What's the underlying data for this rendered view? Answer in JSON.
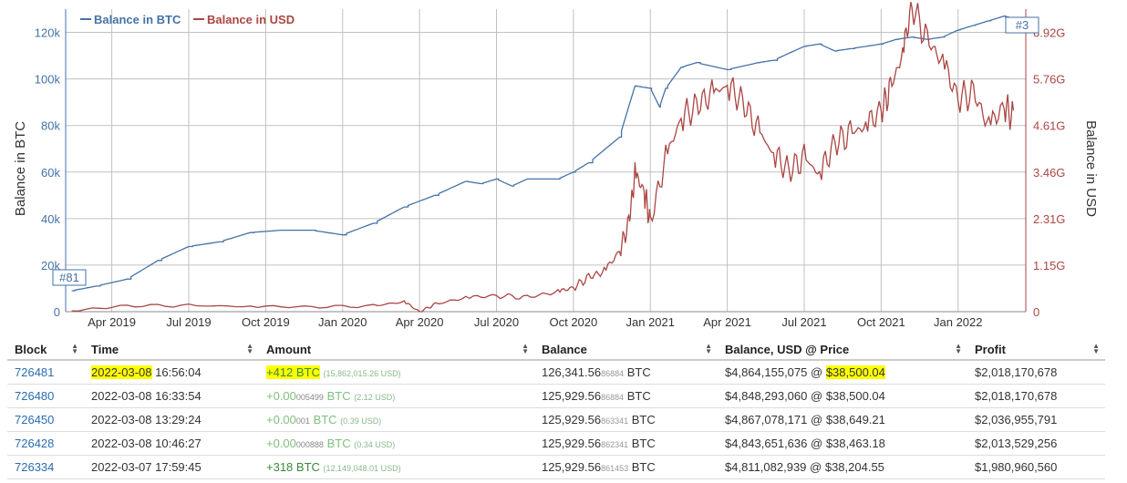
{
  "colors": {
    "btc": "#4572a7",
    "usd": "#aa4643",
    "grid": "#c0c0c0",
    "link": "#2a6cb0",
    "highlight": "#ffff00",
    "positive": "#3a8a3a"
  },
  "chart_data": {
    "type": "line",
    "title": "",
    "legend": [
      "Balance in BTC",
      "Balance in USD"
    ],
    "ylabel_left": "Balance in BTC",
    "ylabel_right": "Balance in USD",
    "ylim_left": [
      0,
      130000
    ],
    "ylim_right": [
      0,
      7.5
    ],
    "yticks_left": [
      "0",
      "20k",
      "40k",
      "60k",
      "80k",
      "100k",
      "120k"
    ],
    "yticks_right": [
      "0",
      "1.15G",
      "2.31G",
      "3.46G",
      "4.61G",
      "5.76G",
      "6.92G"
    ],
    "xticks": [
      "Apr 2019",
      "Jul 2019",
      "Oct 2019",
      "Jan 2020",
      "Apr 2020",
      "Jul 2020",
      "Oct 2020",
      "Jan 2021",
      "Apr 2021",
      "Jul 2021",
      "Oct 2021",
      "Jan 2022"
    ],
    "annotations": [
      "#81",
      "#3"
    ],
    "series": [
      {
        "name": "Balance in BTC",
        "axis": "left",
        "x": [
          2019.12,
          2019.2,
          2019.3,
          2019.4,
          2019.5,
          2019.6,
          2019.7,
          2019.8,
          2019.9,
          2020.0,
          2020.1,
          2020.2,
          2020.3,
          2020.4,
          2020.45,
          2020.5,
          2020.55,
          2020.6,
          2020.7,
          2020.75,
          2020.8,
          2020.9,
          2020.95,
          2021.0,
          2021.03,
          2021.05,
          2021.1,
          2021.15,
          2021.25,
          2021.35,
          2021.4,
          2021.5,
          2021.55,
          2021.6,
          2021.65,
          2021.75,
          2021.8,
          2021.85,
          2021.9,
          2021.95,
          2022.0,
          2022.05,
          2022.1,
          2022.15,
          2022.18
        ],
        "values": [
          9000,
          11000,
          14000,
          22000,
          28000,
          30000,
          34000,
          35000,
          35000,
          33000,
          38000,
          45000,
          50000,
          56000,
          55000,
          57000,
          54000,
          57000,
          57000,
          60000,
          64000,
          75000,
          97000,
          96000,
          88000,
          96000,
          105000,
          107000,
          104000,
          107000,
          108000,
          114000,
          115000,
          112000,
          113000,
          115000,
          117000,
          118000,
          117000,
          118000,
          121000,
          123000,
          125000,
          127000,
          126000
        ]
      },
      {
        "name": "Balance in USD",
        "axis": "right",
        "x": [
          2019.12,
          2019.3,
          2019.5,
          2019.7,
          2019.9,
          2020.1,
          2020.2,
          2020.25,
          2020.3,
          2020.4,
          2020.5,
          2020.6,
          2020.7,
          2020.75,
          2020.8,
          2020.85,
          2020.9,
          2020.93,
          2020.95,
          2020.98,
          2021.0,
          2021.05,
          2021.1,
          2021.15,
          2021.2,
          2021.25,
          2021.3,
          2021.35,
          2021.4,
          2021.45,
          2021.5,
          2021.55,
          2021.6,
          2021.65,
          2021.7,
          2021.75,
          2021.78,
          2021.82,
          2021.85,
          2021.9,
          2021.95,
          2022.0,
          2022.05,
          2022.1,
          2022.15,
          2022.18
        ],
        "values": [
          0.02,
          0.15,
          0.15,
          0.13,
          0.12,
          0.14,
          0.25,
          0.0,
          0.18,
          0.35,
          0.4,
          0.35,
          0.5,
          0.6,
          0.85,
          1.0,
          1.5,
          2.2,
          3.4,
          3.0,
          2.2,
          3.8,
          4.8,
          5.1,
          5.4,
          5.6,
          5.2,
          4.5,
          3.9,
          3.5,
          3.8,
          3.4,
          4.2,
          4.4,
          4.6,
          5.0,
          5.5,
          6.4,
          7.6,
          6.7,
          6.2,
          5.3,
          5.4,
          4.6,
          5.1,
          4.8
        ]
      }
    ]
  },
  "table": {
    "headers": [
      "Block",
      "Time",
      "Amount",
      "Balance",
      "Balance, USD @ Price",
      "Profit"
    ],
    "rows": [
      {
        "block": "726481",
        "date": "2022-03-08",
        "time": "16:56:04",
        "amount_main": "+412 BTC",
        "amount_frac": "",
        "amount_unit": "",
        "amount_usd": "(15,862,015.26 USD)",
        "bal_main": "126,341.56",
        "bal_frac": "86884",
        "bal_unit": "BTC",
        "usd": "$4,864,155,075 @",
        "price": "$38,500.04",
        "profit": "$2,018,170,678"
      },
      {
        "block": "726480",
        "date": "2022-03-08",
        "time": "16:33:54",
        "amount_main": "+0.00",
        "amount_frac": "005499",
        "amount_unit": "BTC",
        "amount_usd": "(2.12 USD)",
        "bal_main": "125,929.56",
        "bal_frac": "86884",
        "bal_unit": "BTC",
        "usd": "$4,848,293,060 @",
        "price": "$38,500.04",
        "profit": "$2,018,170,678"
      },
      {
        "block": "726450",
        "date": "2022-03-08",
        "time": "13:29:24",
        "amount_main": "+0.00",
        "amount_frac": "001",
        "amount_unit": "BTC",
        "amount_usd": "(0.39 USD)",
        "bal_main": "125,929.56",
        "bal_frac": "863341",
        "bal_unit": "BTC",
        "usd": "$4,867,078,171 @",
        "price": "$38,649.21",
        "profit": "$2,036,955,791"
      },
      {
        "block": "726428",
        "date": "2022-03-08",
        "time": "10:46:27",
        "amount_main": "+0.00",
        "amount_frac": "000888",
        "amount_unit": "BTC",
        "amount_usd": "(0.34 USD)",
        "bal_main": "125,929.56",
        "bal_frac": "862341",
        "bal_unit": "BTC",
        "usd": "$4,843,651,636 @",
        "price": "$38,463.18",
        "profit": "$2,013,529,256"
      },
      {
        "block": "726334",
        "date": "2022-03-07",
        "time": "17:59:45",
        "amount_main": "+318 BTC",
        "amount_frac": "",
        "amount_unit": "",
        "amount_usd": "(12,149,048.01 USD)",
        "bal_main": "125,929.56",
        "bal_frac": "861453",
        "bal_unit": "BTC",
        "usd": "$4,811,082,939 @",
        "price": "$38,204.55",
        "profit": "$1,980,960,560"
      }
    ]
  }
}
